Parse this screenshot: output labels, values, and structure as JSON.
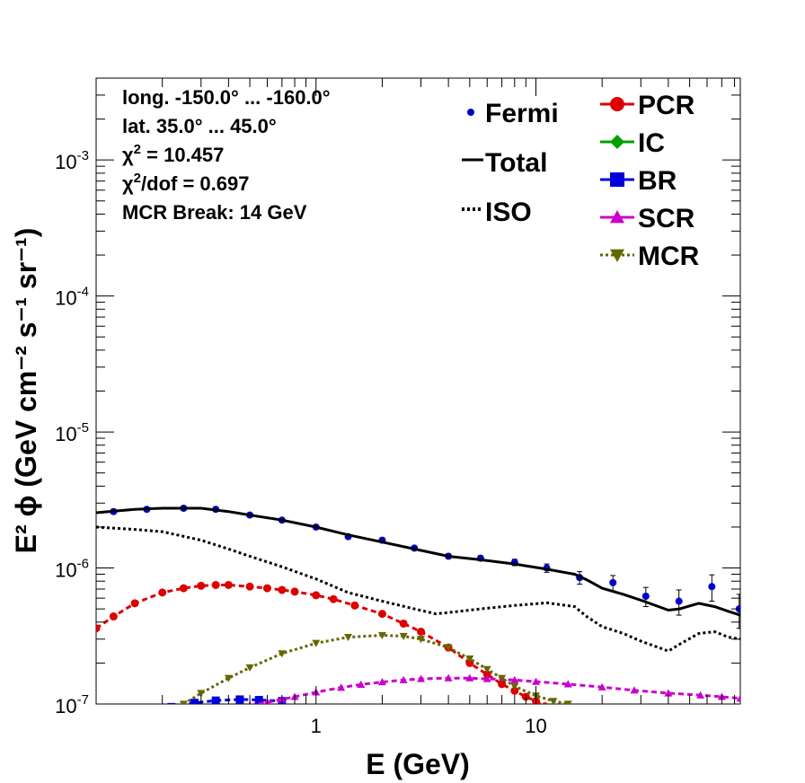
{
  "chart_data": {
    "type": "scatter",
    "xscale": "log",
    "yscale": "log",
    "xlim": [
      0.1,
      85
    ],
    "ylim": [
      1e-07,
      0.004
    ],
    "xlabel": "E (GeV)",
    "ylabel": "E² ϕ (GeV cm⁻² s⁻¹ sr⁻¹)",
    "x_tick_labels": [
      {
        "value": 1,
        "label": "1"
      },
      {
        "value": 10,
        "label": "10"
      }
    ],
    "y_tick_labels": [
      {
        "value": 1e-07,
        "mant": "10",
        "exp": "-7"
      },
      {
        "value": 1e-06,
        "mant": "10",
        "exp": "-6"
      },
      {
        "value": 1e-05,
        "mant": "10",
        "exp": "-5"
      },
      {
        "value": 0.0001,
        "mant": "10",
        "exp": "-4"
      },
      {
        "value": 0.001,
        "mant": "10",
        "exp": "-3"
      }
    ],
    "info_lines": [
      {
        "text": "long. -150.0° ... -160.0°"
      },
      {
        "text": "lat. 35.0° ... 45.0°"
      },
      {
        "sym": "χ",
        "sup": "2",
        "rest": " = 10.457"
      },
      {
        "sym": "χ",
        "sup": "2",
        "rest": "/dof = 0.697"
      },
      {
        "text": "MCR Break: 14 GeV"
      }
    ],
    "legend_left": [
      {
        "label": "Fermi",
        "marker": "dot",
        "color": "#0000cc"
      },
      {
        "label": "Total",
        "marker": "solid-line",
        "color": "#000000"
      },
      {
        "label": "ISO",
        "marker": "dotted-line",
        "color": "#000000"
      }
    ],
    "legend_right": [
      {
        "label": "PCR",
        "marker": "circle",
        "color": "#dd0000"
      },
      {
        "label": "IC",
        "marker": "diamond",
        "color": "#00a000"
      },
      {
        "label": "BR",
        "marker": "square",
        "color": "#0000dd"
      },
      {
        "label": "SCR",
        "marker": "triangle-up",
        "color": "#cc00cc"
      },
      {
        "label": "MCR",
        "marker": "triangle-down",
        "color": "#666600"
      }
    ],
    "series": [
      {
        "name": "Fermi",
        "style": "points-with-errors",
        "color": "#0000cc",
        "x": [
          0.12,
          0.17,
          0.25,
          0.35,
          0.5,
          0.7,
          1.0,
          1.4,
          2.0,
          2.8,
          4.0,
          5.6,
          8.0,
          11.2,
          15.8,
          22.4,
          31.6,
          44.7,
          63.1,
          84.0
        ],
        "y": [
          2.6e-06,
          2.7e-06,
          2.75e-06,
          2.7e-06,
          2.45e-06,
          2.25e-06,
          2e-06,
          1.7e-06,
          1.6e-06,
          1.4e-06,
          1.22e-06,
          1.18e-06,
          1.1e-06,
          1e-06,
          8.5e-07,
          7.8e-07,
          6.2e-07,
          5.7e-07,
          7.3e-07,
          5e-07
        ],
        "err": [
          1e-07,
          1e-07,
          1e-07,
          1e-07,
          9e-08,
          8e-08,
          7e-08,
          6e-08,
          6e-08,
          5e-08,
          5e-08,
          5e-08,
          6e-08,
          7e-08,
          9e-08,
          1e-07,
          1e-07,
          1.2e-07,
          1.6e-07,
          1.4e-07
        ]
      },
      {
        "name": "Total",
        "style": "solid",
        "color": "#000000",
        "x": [
          0.1,
          0.15,
          0.2,
          0.3,
          0.4,
          0.5,
          0.7,
          1.0,
          1.4,
          2.0,
          2.8,
          4.0,
          5.6,
          8.0,
          11.2,
          15.0,
          17.0,
          20.0,
          25.0,
          30.0,
          40.0,
          45.0,
          55.0,
          65.0,
          75.0,
          85.0
        ],
        "y": [
          2.55e-06,
          2.7e-06,
          2.75e-06,
          2.75e-06,
          2.6e-06,
          2.45e-06,
          2.25e-06,
          2e-06,
          1.75e-06,
          1.55e-06,
          1.38e-06,
          1.22e-06,
          1.15e-06,
          1.07e-06,
          9.8e-07,
          9e-07,
          8.2e-07,
          7.1e-07,
          6.4e-07,
          5.8e-07,
          4.9e-07,
          5e-07,
          5.5e-07,
          5.2e-07,
          4.8e-07,
          4.5e-07
        ]
      },
      {
        "name": "ISO",
        "style": "dotted",
        "color": "#000000",
        "x": [
          0.1,
          0.15,
          0.2,
          0.3,
          0.4,
          0.5,
          0.7,
          1.0,
          1.4,
          2.0,
          2.8,
          3.5,
          4.0,
          5.6,
          8.0,
          11.2,
          15.0,
          17.0,
          20.0,
          25.0,
          30.0,
          40.0,
          45.0,
          55.0,
          65.0,
          75.0,
          85.0
        ],
        "y": [
          2e-06,
          1.92e-06,
          1.85e-06,
          1.6e-06,
          1.38e-06,
          1.22e-06,
          1.02e-06,
          8.3e-07,
          6.6e-07,
          5.7e-07,
          5e-07,
          4.6e-07,
          4.7e-07,
          5e-07,
          5.3e-07,
          5.55e-07,
          5.2e-07,
          4.4e-07,
          3.7e-07,
          3.3e-07,
          2.9e-07,
          2.45e-07,
          2.75e-07,
          3.3e-07,
          3.4e-07,
          3.1e-07,
          3e-07
        ]
      },
      {
        "name": "PCR",
        "style": "dashed-markers",
        "marker": "circle",
        "color": "#dd0000",
        "x": [
          0.1,
          0.12,
          0.15,
          0.2,
          0.25,
          0.3,
          0.35,
          0.4,
          0.5,
          0.6,
          0.7,
          0.8,
          1.0,
          1.2,
          1.5,
          2.0,
          2.5,
          3.0,
          4.0,
          5.0,
          6.0,
          7.0,
          8.0,
          9.0,
          10.0,
          11.0,
          12.0,
          13.0,
          14.0,
          15.0
        ],
        "y": [
          3.6e-07,
          4.4e-07,
          5.5e-07,
          6.6e-07,
          7.1e-07,
          7.4e-07,
          7.5e-07,
          7.5e-07,
          7.3e-07,
          7.1e-07,
          6.9e-07,
          6.7e-07,
          6.3e-07,
          5.9e-07,
          5.3e-07,
          4.6e-07,
          3.9e-07,
          3.4e-07,
          2.6e-07,
          2e-07,
          1.65e-07,
          1.4e-07,
          1.25e-07,
          1.13e-07,
          1.05e-07,
          9.6e-08,
          8.9e-08,
          8.3e-08,
          7.8e-08,
          7.3e-08
        ]
      },
      {
        "name": "BR",
        "style": "dashed-markers",
        "marker": "square",
        "color": "#0000dd",
        "x": [
          0.22,
          0.28,
          0.35,
          0.45,
          0.55,
          0.7
        ],
        "y": [
          9.5e-08,
          1.02e-07,
          1.06e-07,
          1.08e-07,
          1.07e-07,
          1.05e-07
        ]
      },
      {
        "name": "SCR",
        "style": "dashed-markers",
        "marker": "triangle-up",
        "color": "#cc00cc",
        "x": [
          0.5,
          0.6,
          0.7,
          0.8,
          1.0,
          1.3,
          1.6,
          2.0,
          2.5,
          3.0,
          4.0,
          5.0,
          6.0,
          8.0,
          10.0,
          14.0,
          20.0,
          28.0,
          40.0,
          56.0,
          70.0,
          85.0
        ],
        "y": [
          9.8e-08,
          1.03e-07,
          1.08e-07,
          1.13e-07,
          1.22e-07,
          1.32e-07,
          1.39e-07,
          1.45e-07,
          1.5e-07,
          1.53e-07,
          1.55e-07,
          1.55e-07,
          1.53e-07,
          1.5e-07,
          1.46e-07,
          1.4e-07,
          1.33e-07,
          1.26e-07,
          1.2e-07,
          1.16e-07,
          1.13e-07,
          1.1e-07
        ]
      },
      {
        "name": "MCR",
        "style": "dotted-markers",
        "marker": "triangle-down",
        "color": "#666600",
        "x": [
          0.25,
          0.3,
          0.4,
          0.5,
          0.7,
          1.0,
          1.4,
          2.0,
          2.5,
          3.0,
          4.0,
          5.0,
          6.0,
          7.0,
          8.0,
          10.0,
          12.0,
          14.0
        ],
        "y": [
          1e-07,
          1.2e-07,
          1.55e-07,
          1.85e-07,
          2.35e-07,
          2.8e-07,
          3.1e-07,
          3.2e-07,
          3.15e-07,
          3e-07,
          2.6e-07,
          2.15e-07,
          1.8e-07,
          1.55e-07,
          1.35e-07,
          1.15e-07,
          1.05e-07,
          1e-07
        ]
      }
    ]
  }
}
